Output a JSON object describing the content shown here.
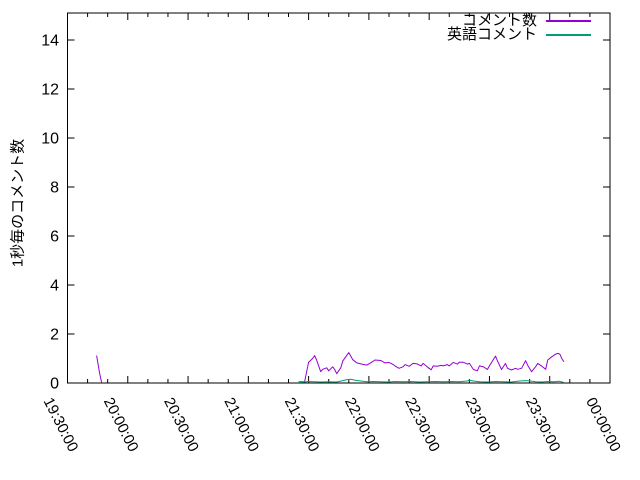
{
  "chart_data": {
    "type": "line",
    "title": "",
    "xlabel": "",
    "ylabel": "1秒毎のコメント数",
    "ylim": [
      0,
      14
    ],
    "y_ticks": [
      0,
      2,
      4,
      6,
      8,
      10,
      12,
      14
    ],
    "x_ticks": [
      "19:30:00",
      "20:00:00",
      "20:30:00",
      "21:00:00",
      "21:30:00",
      "22:00:00",
      "22:30:00",
      "23:00:00",
      "23:30:00",
      "00:00:00"
    ],
    "x_minor_interval_min": 10,
    "x_range": [
      "19:30:00",
      "00:00:00"
    ],
    "grid": false,
    "legend_position": "top-right-inside",
    "axis_color": "#000000",
    "background_color": "#ffffff",
    "series": [
      {
        "name": "コメント数",
        "color": "#9400d3",
        "points": [
          [
            "19:44:30",
            1.12
          ],
          [
            "19:46",
            0.4
          ],
          [
            "19:47",
            0
          ],
          null,
          [
            "21:25",
            0.05
          ],
          [
            "21:28",
            0.05
          ],
          [
            "21:30",
            0.85
          ],
          [
            "21:32",
            1.0
          ],
          [
            "21:33",
            1.12
          ],
          [
            "21:34",
            0.94
          ],
          [
            "21:36",
            0.46
          ],
          [
            "21:37",
            0.56
          ],
          [
            "21:39",
            0.62
          ],
          [
            "21:40",
            0.5
          ],
          [
            "21:42",
            0.66
          ],
          [
            "21:43",
            0.55
          ],
          [
            "21:44",
            0.38
          ],
          [
            "21:46",
            0.62
          ],
          [
            "21:47",
            0.9
          ],
          [
            "21:49",
            1.13
          ],
          [
            "21:50",
            1.24
          ],
          [
            "21:52",
            0.95
          ],
          [
            "21:54",
            0.82
          ],
          [
            "21:57",
            0.76
          ],
          [
            "21:59",
            0.73
          ],
          [
            "22:02",
            0.88
          ],
          [
            "22:03",
            0.94
          ],
          [
            "22:06",
            0.92
          ],
          [
            "22:08",
            0.82
          ],
          [
            "22:10",
            0.84
          ],
          [
            "22:12",
            0.76
          ],
          [
            "22:13",
            0.7
          ],
          [
            "22:15",
            0.6
          ],
          [
            "22:17",
            0.66
          ],
          [
            "22:18",
            0.75
          ],
          [
            "22:20",
            0.68
          ],
          [
            "22:22",
            0.8
          ],
          [
            "22:24",
            0.78
          ],
          [
            "22:26",
            0.7
          ],
          [
            "22:27",
            0.8
          ],
          [
            "22:29",
            0.66
          ],
          [
            "22:31",
            0.54
          ],
          [
            "22:32",
            0.7
          ],
          [
            "22:34",
            0.68
          ],
          [
            "22:36",
            0.72
          ],
          [
            "22:37",
            0.7
          ],
          [
            "22:39",
            0.75
          ],
          [
            "22:40",
            0.7
          ],
          [
            "22:42",
            0.84
          ],
          [
            "22:44",
            0.77
          ],
          [
            "22:45",
            0.85
          ],
          [
            "22:47",
            0.85
          ],
          [
            "22:49",
            0.77
          ],
          [
            "22:50",
            0.8
          ],
          [
            "22:52",
            0.55
          ],
          [
            "22:54",
            0.5
          ],
          [
            "22:55",
            0.7
          ],
          [
            "22:57",
            0.66
          ],
          [
            "22:59",
            0.55
          ],
          [
            "23:00",
            0.7
          ],
          [
            "23:03",
            1.1
          ],
          [
            "23:04",
            0.9
          ],
          [
            "23:06",
            0.55
          ],
          [
            "23:08",
            0.8
          ],
          [
            "23:09",
            0.6
          ],
          [
            "23:11",
            0.53
          ],
          [
            "23:13",
            0.6
          ],
          [
            "23:14",
            0.56
          ],
          [
            "23:16",
            0.6
          ],
          [
            "23:18",
            0.91
          ],
          [
            "23:19",
            0.73
          ],
          [
            "23:21",
            0.46
          ],
          [
            "23:23",
            0.67
          ],
          [
            "23:24",
            0.8
          ],
          [
            "23:26",
            0.69
          ],
          [
            "23:28",
            0.56
          ],
          [
            "23:29",
            0.94
          ],
          [
            "23:31",
            1.07
          ],
          [
            "23:33",
            1.18
          ],
          [
            "23:34",
            1.21
          ],
          [
            "23:35",
            1.18
          ],
          [
            "23:36",
            1.0
          ],
          [
            "23:37",
            0.87
          ]
        ]
      },
      {
        "name": "英語コメント",
        "color": "#009e73",
        "points": [
          [
            "21:25",
            0.02
          ],
          [
            "21:28",
            0.04
          ],
          [
            "21:30",
            0.06
          ],
          [
            "21:33",
            0.05
          ],
          [
            "21:36",
            0.04
          ],
          [
            "21:40",
            0.05
          ],
          [
            "21:44",
            0.04
          ],
          [
            "21:47",
            0.1
          ],
          [
            "21:49",
            0.14
          ],
          [
            "21:51",
            0.15
          ],
          [
            "21:53",
            0.12
          ],
          [
            "21:56",
            0.08
          ],
          [
            "21:59",
            0.05
          ],
          [
            "22:02",
            0.06
          ],
          [
            "22:06",
            0.05
          ],
          [
            "22:10",
            0.04
          ],
          [
            "22:13",
            0.06
          ],
          [
            "22:17",
            0.05
          ],
          [
            "22:21",
            0.06
          ],
          [
            "22:25",
            0.04
          ],
          [
            "22:29",
            0.05
          ],
          [
            "22:33",
            0.06
          ],
          [
            "22:37",
            0.05
          ],
          [
            "22:41",
            0.06
          ],
          [
            "22:45",
            0.05
          ],
          [
            "22:49",
            0.08
          ],
          [
            "22:50",
            0.12
          ],
          [
            "22:52",
            0.08
          ],
          [
            "22:55",
            0.05
          ],
          [
            "22:59",
            0.04
          ],
          [
            "23:03",
            0.06
          ],
          [
            "23:07",
            0.05
          ],
          [
            "23:11",
            0.04
          ],
          [
            "23:15",
            0.08
          ],
          [
            "23:18",
            0.1
          ],
          [
            "23:20",
            0.08
          ],
          [
            "23:23",
            0.05
          ],
          [
            "23:26",
            0.04
          ],
          [
            "23:29",
            0.06
          ],
          [
            "23:32",
            0.05
          ],
          [
            "23:35",
            0.07
          ],
          [
            "23:37",
            0.02
          ]
        ]
      }
    ]
  }
}
